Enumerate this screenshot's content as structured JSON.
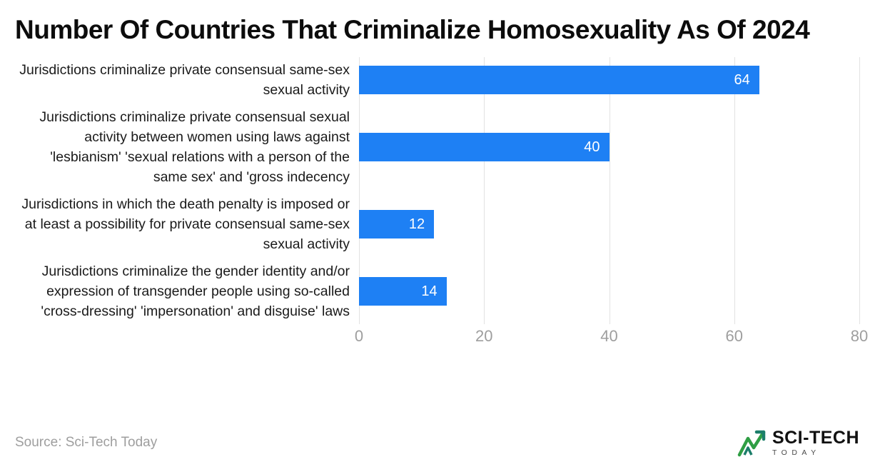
{
  "title": "Number Of Countries That Criminalize Homosexuality As Of 2024",
  "source": "Source: Sci-Tech Today",
  "logo": {
    "line1": "SCI-TECH",
    "line2": "TODAY"
  },
  "colors": {
    "bar": "#1e80f4",
    "grid": "#e2e2e2",
    "tick": "#9e9e9e",
    "logo_green": "#2f9e44",
    "logo_teal": "#1c7e6a"
  },
  "chart_data": {
    "type": "bar",
    "orientation": "horizontal",
    "title": "Number Of Countries That Criminalize Homosexuality As Of 2024",
    "categories": [
      "Jurisdictions criminalize private consensual same-sex sexual activity",
      "Jurisdictions criminalize private consensual sexual activity between women using laws against 'lesbianism' 'sexual relations with a person of the same sex' and 'gross indecency",
      "Jurisdictions in which the death penalty is imposed or at least a possibility for private consensual same-sex sexual activity",
      "Jurisdictions criminalize the gender identity and/or expression of transgender people using so-called 'cross-dressing' 'impersonation' and disguise' laws"
    ],
    "values": [
      64,
      40,
      12,
      14
    ],
    "xlabel": "",
    "ylabel": "",
    "xlim": [
      0,
      80
    ],
    "xticks": [
      0,
      20,
      40,
      60,
      80
    ],
    "grid": true,
    "legend": false,
    "value_labels_position": "inside-end",
    "value_labels_color": "#ffffff"
  }
}
